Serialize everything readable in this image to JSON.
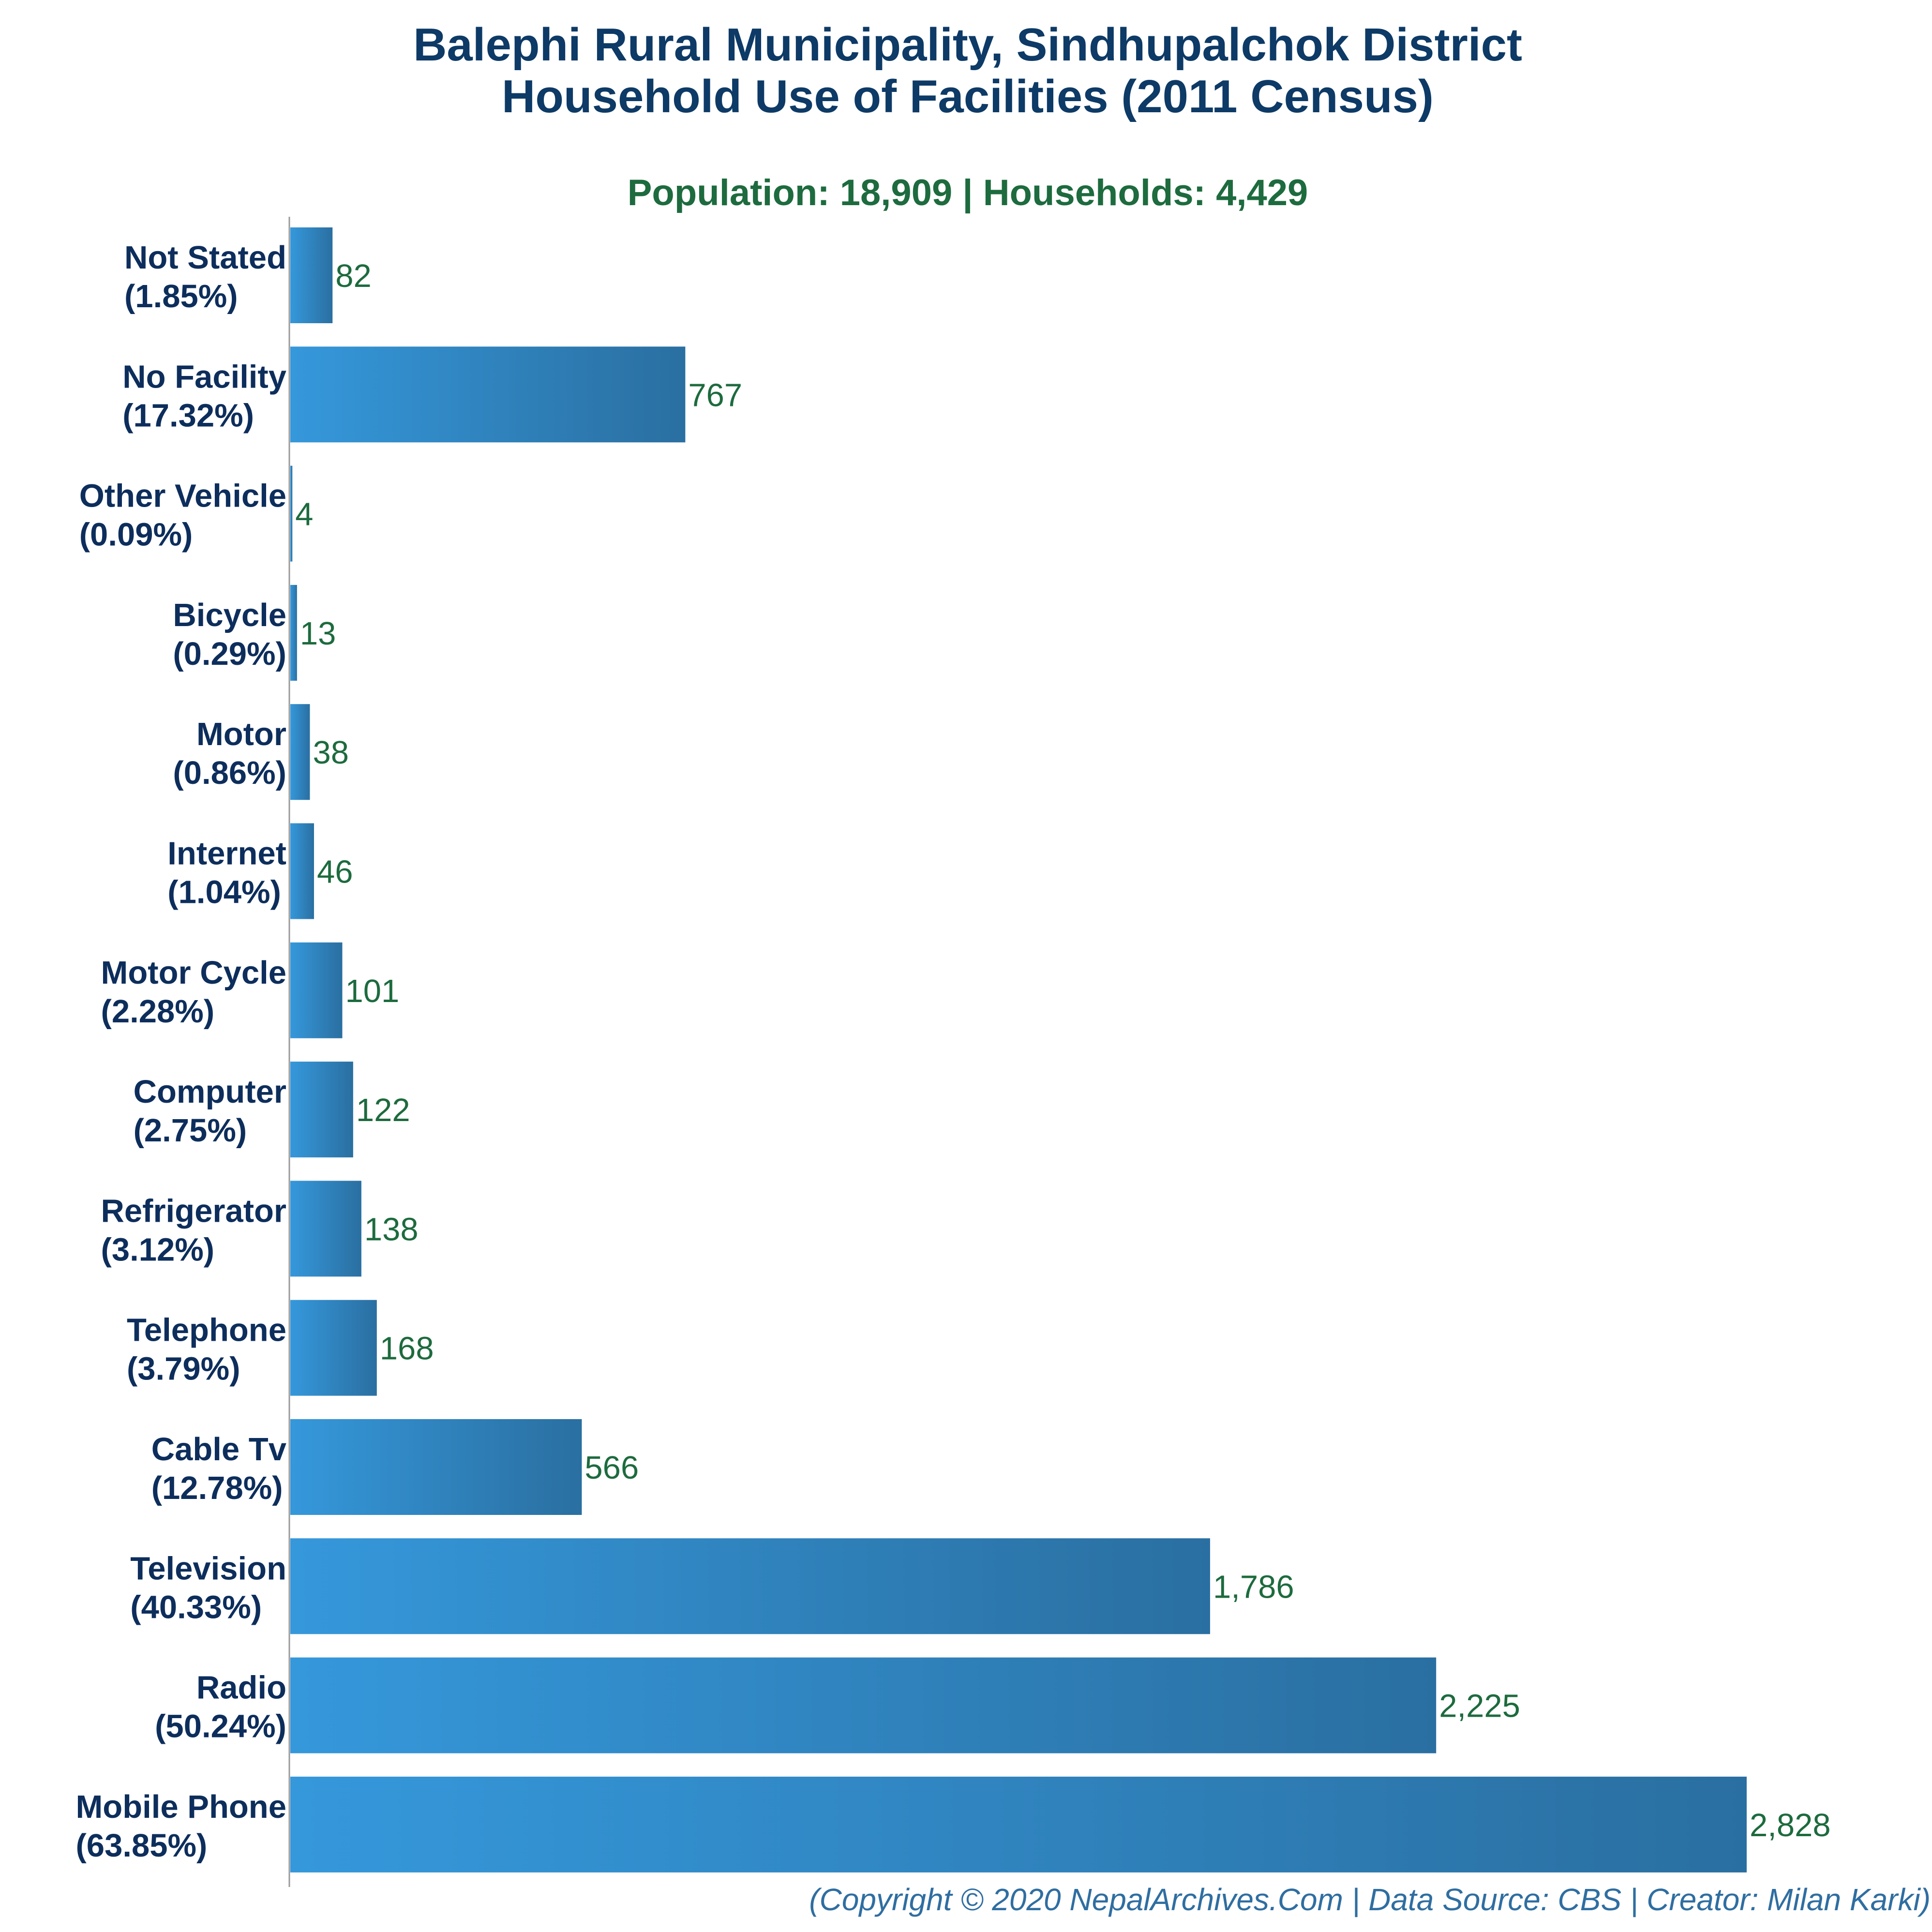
{
  "colors": {
    "title": "#0d3a66",
    "subtitle": "#1d6b3e",
    "category_label": "#0d2e5c",
    "value_label": "#1d6b3e",
    "bar_gradient_start": "#3598db",
    "bar_gradient_end": "#2a6fa1",
    "axis": "#9a9a9a",
    "footer": "#2f6ea1"
  },
  "chart_data": {
    "type": "bar",
    "orientation": "horizontal",
    "title_line1": "Balephi Rural Municipality, Sindhupalchok District",
    "title_line2": "Household Use of Facilities (2011 Census)",
    "subtitle": "Population: 18,909 | Households: 4,429",
    "xlabel": "",
    "ylabel": "",
    "xlim": [
      0,
      2828
    ],
    "grid": false,
    "legend": "none",
    "categories": [
      {
        "name": "Not Stated",
        "percent": "(1.85%)",
        "value": 82,
        "value_label": "82"
      },
      {
        "name": "No Facility",
        "percent": "(17.32%)",
        "value": 767,
        "value_label": "767"
      },
      {
        "name": "Other Vehicle",
        "percent": "(0.09%)",
        "value": 4,
        "value_label": "4"
      },
      {
        "name": "Bicycle",
        "percent": "(0.29%)",
        "value": 13,
        "value_label": "13"
      },
      {
        "name": "Motor",
        "percent": "(0.86%)",
        "value": 38,
        "value_label": "38"
      },
      {
        "name": "Internet",
        "percent": "(1.04%)",
        "value": 46,
        "value_label": "46"
      },
      {
        "name": "Motor Cycle",
        "percent": "(2.28%)",
        "value": 101,
        "value_label": "101"
      },
      {
        "name": "Computer",
        "percent": "(2.75%)",
        "value": 122,
        "value_label": "122"
      },
      {
        "name": "Refrigerator",
        "percent": "(3.12%)",
        "value": 138,
        "value_label": "138"
      },
      {
        "name": "Telephone",
        "percent": "(3.79%)",
        "value": 168,
        "value_label": "168"
      },
      {
        "name": "Cable Tv",
        "percent": "(12.78%)",
        "value": 566,
        "value_label": "566"
      },
      {
        "name": "Television",
        "percent": "(40.33%)",
        "value": 1786,
        "value_label": "1,786"
      },
      {
        "name": "Radio",
        "percent": "(50.24%)",
        "value": 2225,
        "value_label": "2,225"
      },
      {
        "name": "Mobile Phone",
        "percent": "(63.85%)",
        "value": 2828,
        "value_label": "2,828"
      }
    ]
  },
  "footer": "(Copyright © 2020 NepalArchives.Com | Data Source: CBS | Creator: Milan Karki)"
}
